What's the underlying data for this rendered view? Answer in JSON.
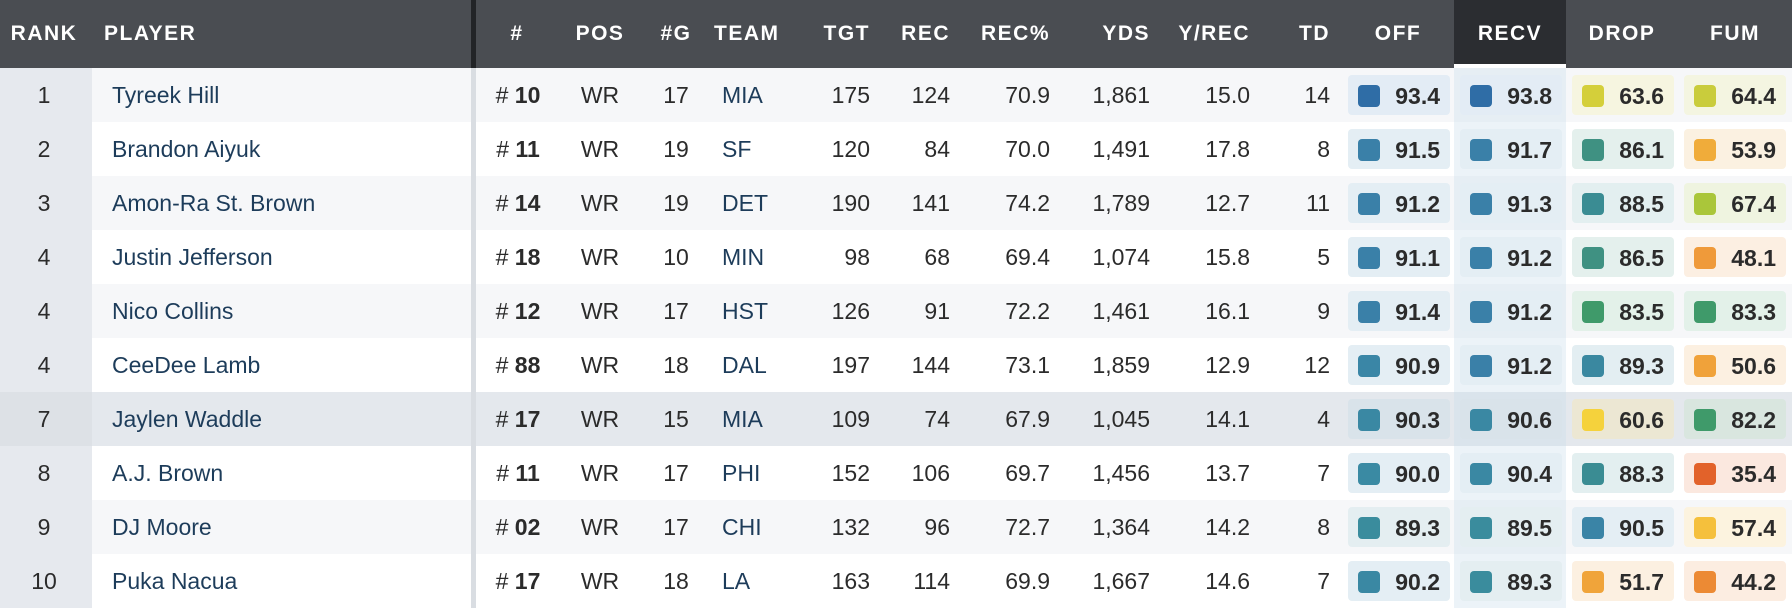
{
  "headers": {
    "rank": "RANK",
    "player": "PLAYER",
    "jersey": "#",
    "pos": "POS",
    "games": "#G",
    "team": "TEAM",
    "tgt": "TGT",
    "rec": "REC",
    "rec_pct": "REC%",
    "yds": "YDS",
    "y_rec": "Y/REC",
    "td": "TD",
    "off": "OFF",
    "recv": "RECV",
    "drop": "DROP",
    "fum": "FUM"
  },
  "active_sort_column": "RECV",
  "rows": [
    {
      "rank": "1",
      "player": "Tyreek Hill",
      "hash": "#",
      "jersey": "10",
      "pos": "WR",
      "games": "17",
      "team": "MIA",
      "tgt": "175",
      "rec": "124",
      "rec_pct": "70.9",
      "yds": "1,861",
      "y_rec": "15.0",
      "td": "14",
      "off": {
        "value": "93.4",
        "color": "#2f6da6",
        "bg": "#e3ecf5"
      },
      "recv": {
        "value": "93.8",
        "color": "#2f6da6",
        "bg": "#e3ecf5"
      },
      "drop": {
        "value": "63.6",
        "color": "#d4cf3a",
        "bg": "#f6f5e0"
      },
      "fum": {
        "value": "64.4",
        "color": "#c9cc3c",
        "bg": "#f4f5e1"
      }
    },
    {
      "rank": "2",
      "player": "Brandon Aiyuk",
      "hash": "#",
      "jersey": "11",
      "pos": "WR",
      "games": "19",
      "team": "SF",
      "tgt": "120",
      "rec": "84",
      "rec_pct": "70.0",
      "yds": "1,491",
      "y_rec": "17.8",
      "td": "8",
      "off": {
        "value": "91.5",
        "color": "#3a80a8",
        "bg": "#e4eef4"
      },
      "recv": {
        "value": "91.7",
        "color": "#3a80a8",
        "bg": "#e4eef4"
      },
      "drop": {
        "value": "86.1",
        "color": "#3f9182",
        "bg": "#e4f0ed"
      },
      "fum": {
        "value": "53.9",
        "color": "#f0ac3a",
        "bg": "#fbf1e1"
      }
    },
    {
      "rank": "3",
      "player": "Amon-Ra St. Brown",
      "hash": "#",
      "jersey": "14",
      "pos": "WR",
      "games": "19",
      "team": "DET",
      "tgt": "190",
      "rec": "141",
      "rec_pct": "74.2",
      "yds": "1,789",
      "y_rec": "12.7",
      "td": "11",
      "off": {
        "value": "91.2",
        "color": "#3a80a8",
        "bg": "#e4eef4"
      },
      "recv": {
        "value": "91.3",
        "color": "#3a80a8",
        "bg": "#e4eef4"
      },
      "drop": {
        "value": "88.5",
        "color": "#3a8c93",
        "bg": "#e3eff0"
      },
      "fum": {
        "value": "67.4",
        "color": "#aac63a",
        "bg": "#eff4e0"
      }
    },
    {
      "rank": "4",
      "player": "Justin Jefferson",
      "hash": "#",
      "jersey": "18",
      "pos": "WR",
      "games": "10",
      "team": "MIN",
      "tgt": "98",
      "rec": "68",
      "rec_pct": "69.4",
      "yds": "1,074",
      "y_rec": "15.8",
      "td": "5",
      "off": {
        "value": "91.1",
        "color": "#3a80a8",
        "bg": "#e4eef4"
      },
      "recv": {
        "value": "91.2",
        "color": "#3a80a8",
        "bg": "#e4eef4"
      },
      "drop": {
        "value": "86.5",
        "color": "#3f9182",
        "bg": "#e4f0ed"
      },
      "fum": {
        "value": "48.1",
        "color": "#ef9a3a",
        "bg": "#fcefe2"
      }
    },
    {
      "rank": "4",
      "player": "Nico Collins",
      "hash": "#",
      "jersey": "12",
      "pos": "WR",
      "games": "17",
      "team": "HST",
      "tgt": "126",
      "rec": "91",
      "rec_pct": "72.2",
      "yds": "1,461",
      "y_rec": "16.1",
      "td": "9",
      "off": {
        "value": "91.4",
        "color": "#3a80a8",
        "bg": "#e4eef4"
      },
      "recv": {
        "value": "91.2",
        "color": "#3a80a8",
        "bg": "#e4eef4"
      },
      "drop": {
        "value": "83.5",
        "color": "#3f9a6a",
        "bg": "#e3f1e9"
      },
      "fum": {
        "value": "83.3",
        "color": "#3f9a6a",
        "bg": "#e3f1e9"
      }
    },
    {
      "rank": "4",
      "player": "CeeDee Lamb",
      "hash": "#",
      "jersey": "88",
      "pos": "WR",
      "games": "18",
      "team": "DAL",
      "tgt": "197",
      "rec": "144",
      "rec_pct": "73.1",
      "yds": "1,859",
      "y_rec": "12.9",
      "td": "12",
      "off": {
        "value": "90.9",
        "color": "#3a86a6",
        "bg": "#e4eef4"
      },
      "recv": {
        "value": "91.2",
        "color": "#3a80a8",
        "bg": "#e4eef4"
      },
      "drop": {
        "value": "89.3",
        "color": "#3a88a0",
        "bg": "#e3eef2"
      },
      "fum": {
        "value": "50.6",
        "color": "#f0a23a",
        "bg": "#fcf0e1"
      }
    },
    {
      "rank": "7",
      "player": "Jaylen Waddle",
      "hash": "#",
      "jersey": "17",
      "pos": "WR",
      "games": "15",
      "team": "MIA",
      "tgt": "109",
      "rec": "74",
      "rec_pct": "67.9",
      "yds": "1,045",
      "y_rec": "14.1",
      "td": "4",
      "off": {
        "value": "90.3",
        "color": "#3a88a3",
        "bg": "#d9e3ea"
      },
      "recv": {
        "value": "90.6",
        "color": "#3a88a3",
        "bg": "#d9e3ea"
      },
      "drop": {
        "value": "60.6",
        "color": "#f5d23c",
        "bg": "#ece7d3"
      },
      "fum": {
        "value": "82.2",
        "color": "#3f9a6a",
        "bg": "#d9e6df"
      }
    },
    {
      "rank": "8",
      "player": "A.J. Brown",
      "hash": "#",
      "jersey": "11",
      "pos": "WR",
      "games": "17",
      "team": "PHI",
      "tgt": "152",
      "rec": "106",
      "rec_pct": "69.7",
      "yds": "1,456",
      "y_rec": "13.7",
      "td": "7",
      "off": {
        "value": "90.0",
        "color": "#3a8aa3",
        "bg": "#e4eef4"
      },
      "recv": {
        "value": "90.4",
        "color": "#3a88a3",
        "bg": "#e4eef4"
      },
      "drop": {
        "value": "88.3",
        "color": "#3a8c93",
        "bg": "#e3eff0"
      },
      "fum": {
        "value": "35.4",
        "color": "#e2622a",
        "bg": "#fbe8df"
      }
    },
    {
      "rank": "9",
      "player": "DJ Moore",
      "hash": "#",
      "jersey": "02",
      "pos": "WR",
      "games": "17",
      "team": "CHI",
      "tgt": "132",
      "rec": "96",
      "rec_pct": "72.7",
      "yds": "1,364",
      "y_rec": "14.2",
      "td": "8",
      "off": {
        "value": "89.3",
        "color": "#3a8c9d",
        "bg": "#e4eef1"
      },
      "recv": {
        "value": "89.5",
        "color": "#3a8c9d",
        "bg": "#e4eef1"
      },
      "drop": {
        "value": "90.5",
        "color": "#3a84a6",
        "bg": "#e4eef4"
      },
      "fum": {
        "value": "57.4",
        "color": "#f5c03c",
        "bg": "#fcf3df"
      }
    },
    {
      "rank": "10",
      "player": "Puka Nacua",
      "hash": "#",
      "jersey": "17",
      "pos": "WR",
      "games": "18",
      "team": "LA",
      "tgt": "163",
      "rec": "114",
      "rec_pct": "69.9",
      "yds": "1,667",
      "y_rec": "14.6",
      "td": "7",
      "off": {
        "value": "90.2",
        "color": "#3a88a3",
        "bg": "#e4eef4"
      },
      "recv": {
        "value": "89.3",
        "color": "#3a8c9d",
        "bg": "#e4eef1"
      },
      "drop": {
        "value": "51.7",
        "color": "#f0a43a",
        "bg": "#fcf0e1"
      },
      "fum": {
        "value": "44.2",
        "color": "#ec8a34",
        "bg": "#fcede1"
      }
    }
  ]
}
